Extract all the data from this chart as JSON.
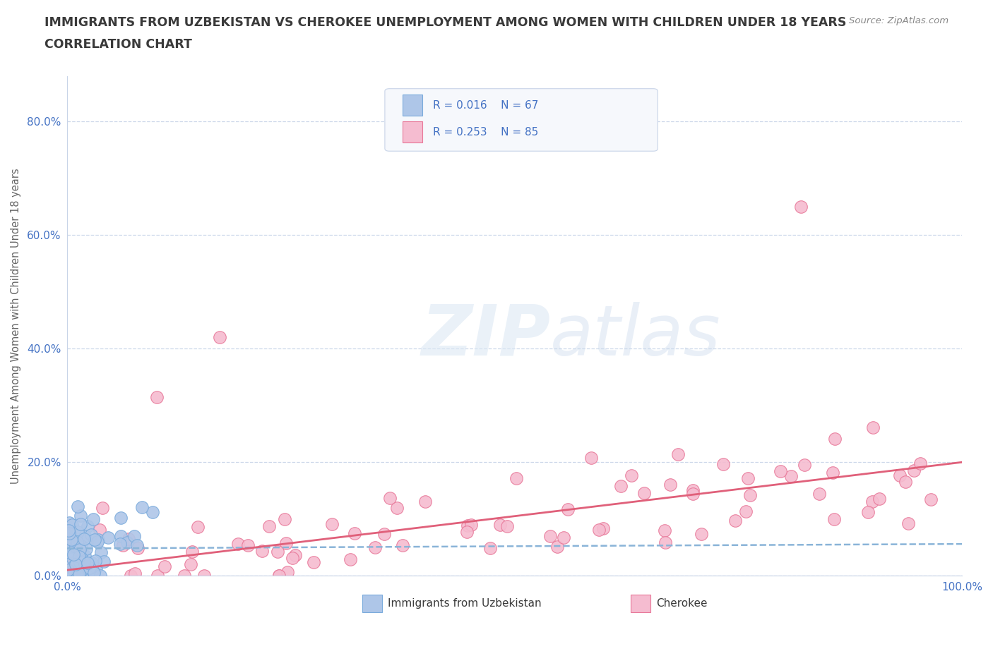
{
  "title_line1": "IMMIGRANTS FROM UZBEKISTAN VS CHEROKEE UNEMPLOYMENT AMONG WOMEN WITH CHILDREN UNDER 18 YEARS",
  "title_line2": "CORRELATION CHART",
  "source_text": "Source: ZipAtlas.com",
  "ylabel": "Unemployment Among Women with Children Under 18 years",
  "xlim": [
    0.0,
    1.0
  ],
  "ylim": [
    0.0,
    0.88
  ],
  "ytick_positions": [
    0.0,
    0.2,
    0.4,
    0.6,
    0.8
  ],
  "ytick_labels": [
    "0.0%",
    "20.0%",
    "40.0%",
    "60.0%",
    "80.0%"
  ],
  "xtick_positions": [
    0.0,
    1.0
  ],
  "xtick_labels": [
    "0.0%",
    "100.0%"
  ],
  "watermark": "ZIPatlas",
  "color_uzbekistan_fill": "#aec6e8",
  "color_uzbekistan_edge": "#7aabdc",
  "color_cherokee_fill": "#f5bcd0",
  "color_cherokee_edge": "#e87899",
  "color_uzbekistan_line": "#8ab4d8",
  "color_cherokee_line": "#e0607a",
  "color_title": "#3a3a3a",
  "color_axis_tick": "#4472c4",
  "color_ylabel": "#666666",
  "background_color": "#ffffff",
  "grid_color": "#c8d4e8",
  "legend_color": "#4472c4",
  "source_color": "#888888",
  "uzbek_line_intercept": 0.048,
  "uzbek_line_slope": 0.008,
  "cherokee_line_intercept": 0.01,
  "cherokee_line_slope": 0.19,
  "seed_uzbek": 7,
  "seed_cherokee": 13
}
